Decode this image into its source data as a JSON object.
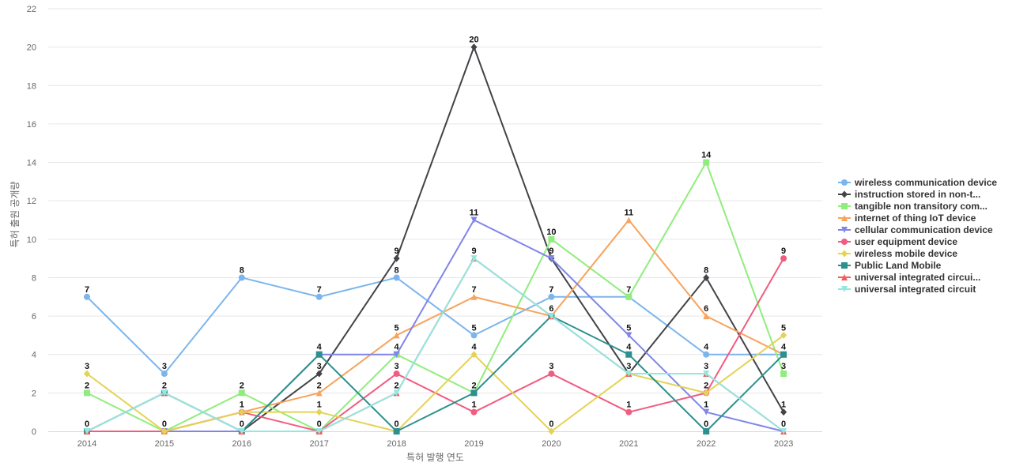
{
  "chart_data": {
    "type": "line",
    "title": "",
    "xlabel": "특허 발행 연도",
    "ylabel": "특허 출원 공개량",
    "ylim": [
      0,
      22
    ],
    "yticks": [
      0,
      2,
      4,
      6,
      8,
      10,
      12,
      14,
      16,
      18,
      20,
      22
    ],
    "grid": true,
    "legend_position": "right",
    "x": [
      "2014",
      "2015",
      "2016",
      "2017",
      "2018",
      "2019",
      "2020",
      "2021",
      "2022",
      "2023"
    ],
    "series": [
      {
        "name": "wireless communication device",
        "color": "#7cb5ec",
        "marker": "circle",
        "values": [
          7,
          3,
          8,
          7,
          8,
          5,
          7,
          7,
          4,
          4
        ]
      },
      {
        "name": "instruction stored in non-t...",
        "color": "#434348",
        "marker": "diamond",
        "values": [
          0,
          0,
          0,
          3,
          9,
          20,
          9,
          3,
          8,
          1
        ]
      },
      {
        "name": "tangible non transitory com...",
        "color": "#90ed7d",
        "marker": "square",
        "values": [
          2,
          0,
          2,
          0,
          4,
          2,
          10,
          7,
          14,
          3
        ]
      },
      {
        "name": "internet of thing IoT device",
        "color": "#f7a35c",
        "marker": "triangle",
        "values": [
          0,
          0,
          1,
          2,
          5,
          7,
          6,
          11,
          6,
          4
        ]
      },
      {
        "name": "cellular communication device",
        "color": "#8085e9",
        "marker": "triangle-down",
        "values": [
          0,
          0,
          0,
          4,
          4,
          11,
          9,
          5,
          1,
          0
        ]
      },
      {
        "name": "user equipment device",
        "color": "#f15c80",
        "marker": "circle",
        "values": [
          0,
          0,
          1,
          0,
          3,
          1,
          3,
          1,
          2,
          9
        ]
      },
      {
        "name": "wireless mobile device",
        "color": "#e4d354",
        "marker": "diamond",
        "values": [
          3,
          0,
          1,
          1,
          0,
          4,
          0,
          3,
          2,
          5
        ]
      },
      {
        "name": "Public Land Mobile",
        "color": "#2b908f",
        "marker": "square",
        "values": [
          0,
          2,
          0,
          4,
          0,
          2,
          6,
          4,
          0,
          4
        ]
      },
      {
        "name": "universal integrated circui...",
        "color": "#f45b5b",
        "marker": "triangle",
        "values": [
          0,
          2,
          0,
          0,
          2,
          9,
          6,
          3,
          3,
          0
        ]
      },
      {
        "name": "universal integrated circuit",
        "color": "#91e8e1",
        "marker": "triangle-down",
        "values": [
          0,
          2,
          0,
          0,
          2,
          9,
          6,
          3,
          3,
          0
        ]
      }
    ],
    "annotations": [
      {
        "x": "2014",
        "label": "7",
        "y": 7
      },
      {
        "x": "2014",
        "label": "3",
        "y": 3
      },
      {
        "x": "2014",
        "label": "2",
        "y": 2
      },
      {
        "x": "2014",
        "label": "0",
        "y": 0
      },
      {
        "x": "2015",
        "label": "3",
        "y": 3
      },
      {
        "x": "2015",
        "label": "2",
        "y": 2
      },
      {
        "x": "2015",
        "label": "0",
        "y": 0
      },
      {
        "x": "2016",
        "label": "8",
        "y": 8
      },
      {
        "x": "2016",
        "label": "2",
        "y": 2
      },
      {
        "x": "2016",
        "label": "1",
        "y": 1
      },
      {
        "x": "2016",
        "label": "0",
        "y": 0
      },
      {
        "x": "2017",
        "label": "7",
        "y": 7
      },
      {
        "x": "2017",
        "label": "4",
        "y": 4
      },
      {
        "x": "2017",
        "label": "3",
        "y": 3
      },
      {
        "x": "2017",
        "label": "2",
        "y": 2
      },
      {
        "x": "2017",
        "label": "1",
        "y": 1
      },
      {
        "x": "2017",
        "label": "0",
        "y": 0
      },
      {
        "x": "2018",
        "label": "9",
        "y": 9
      },
      {
        "x": "2018",
        "label": "8",
        "y": 8
      },
      {
        "x": "2018",
        "label": "5",
        "y": 5
      },
      {
        "x": "2018",
        "label": "4",
        "y": 4
      },
      {
        "x": "2018",
        "label": "3",
        "y": 3
      },
      {
        "x": "2018",
        "label": "2",
        "y": 2
      },
      {
        "x": "2018",
        "label": "0",
        "y": 0
      },
      {
        "x": "2019",
        "label": "20",
        "y": 20
      },
      {
        "x": "2019",
        "label": "11",
        "y": 11
      },
      {
        "x": "2019",
        "label": "9",
        "y": 9
      },
      {
        "x": "2019",
        "label": "7",
        "y": 7
      },
      {
        "x": "2019",
        "label": "5",
        "y": 5
      },
      {
        "x": "2019",
        "label": "4",
        "y": 4
      },
      {
        "x": "2019",
        "label": "2",
        "y": 2
      },
      {
        "x": "2019",
        "label": "1",
        "y": 1
      },
      {
        "x": "2020",
        "label": "10",
        "y": 10
      },
      {
        "x": "2020",
        "label": "9",
        "y": 9
      },
      {
        "x": "2020",
        "label": "7",
        "y": 7
      },
      {
        "x": "2020",
        "label": "6",
        "y": 6
      },
      {
        "x": "2020",
        "label": "3",
        "y": 3
      },
      {
        "x": "2020",
        "label": "0",
        "y": 0
      },
      {
        "x": "2021",
        "label": "11",
        "y": 11
      },
      {
        "x": "2021",
        "label": "7",
        "y": 7
      },
      {
        "x": "2021",
        "label": "5",
        "y": 5
      },
      {
        "x": "2021",
        "label": "4",
        "y": 4
      },
      {
        "x": "2021",
        "label": "3",
        "y": 3
      },
      {
        "x": "2021",
        "label": "1",
        "y": 1
      },
      {
        "x": "2022",
        "label": "14",
        "y": 14
      },
      {
        "x": "2022",
        "label": "8",
        "y": 8
      },
      {
        "x": "2022",
        "label": "6",
        "y": 6
      },
      {
        "x": "2022",
        "label": "4",
        "y": 4
      },
      {
        "x": "2022",
        "label": "3",
        "y": 3
      },
      {
        "x": "2022",
        "label": "2",
        "y": 2
      },
      {
        "x": "2022",
        "label": "1",
        "y": 1
      },
      {
        "x": "2022",
        "label": "0",
        "y": 0
      },
      {
        "x": "2023",
        "label": "9",
        "y": 9
      },
      {
        "x": "2023",
        "label": "5",
        "y": 5
      },
      {
        "x": "2023",
        "label": "4",
        "y": 4
      },
      {
        "x": "2023",
        "label": "3",
        "y": 3
      },
      {
        "x": "2023",
        "label": "1",
        "y": 1
      },
      {
        "x": "2023",
        "label": "0",
        "y": 0
      }
    ]
  }
}
